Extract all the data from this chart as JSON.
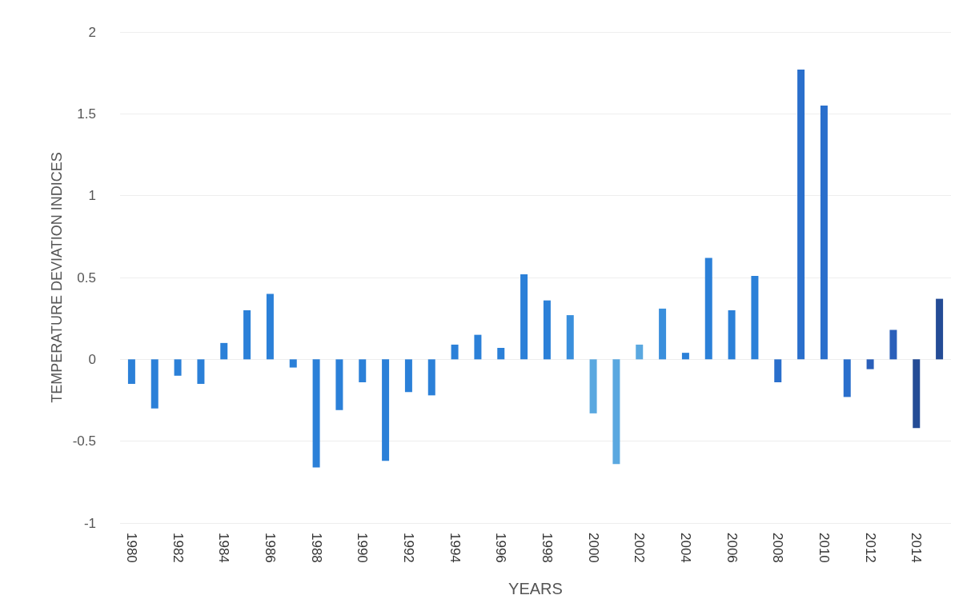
{
  "chart_data": {
    "type": "bar",
    "xlabel": "YEARS",
    "ylabel": "TEMPERATURE DEVIATION INDICES",
    "categories": [
      "1980",
      null,
      "1982",
      null,
      "1984",
      null,
      "1986",
      null,
      "1988",
      null,
      "1990",
      null,
      "1992",
      null,
      "1994",
      null,
      "1996",
      null,
      "1998",
      null,
      "2000",
      null,
      "2002",
      null,
      "2004",
      null,
      "2006",
      null,
      "2008",
      null,
      "2010",
      null,
      "2012",
      null,
      "2014",
      null
    ],
    "values": [
      -0.15,
      -0.3,
      -0.1,
      -0.15,
      0.1,
      0.3,
      0.4,
      -0.05,
      -0.66,
      -0.31,
      -0.14,
      -0.62,
      -0.2,
      -0.22,
      0.09,
      0.15,
      0.07,
      0.52,
      0.36,
      0.27,
      -0.33,
      -0.64,
      0.09,
      0.31,
      0.04,
      0.62,
      0.3,
      0.51,
      -0.14,
      1.77,
      1.55,
      -0.23,
      -0.06,
      0.18,
      -0.42,
      0.37
    ],
    "colors": [
      "#2b80d8",
      "#2b80d8",
      "#2b80d8",
      "#2b80d8",
      "#2b80d8",
      "#2b80d8",
      "#2b80d8",
      "#2b80d8",
      "#2b80d8",
      "#2b80d8",
      "#2b80d8",
      "#2b80d8",
      "#2b80d8",
      "#2b80d8",
      "#2b80d8",
      "#2b80d8",
      "#2b80d8",
      "#2b80d8",
      "#2b80d8",
      "#3a8fdc",
      "#5aa8e0",
      "#5aa8e0",
      "#5aa8e0",
      "#3a8fdc",
      "#2b80d8",
      "#2b80d8",
      "#2b80d8",
      "#2b80d8",
      "#2a6fcc",
      "#2a6fcc",
      "#2a6fcc",
      "#2a6fcc",
      "#2a5fba",
      "#2a5fba",
      "#244c96",
      "#244c96"
    ],
    "ylim": [
      -1,
      2
    ],
    "yticks": [
      -1,
      -0.5,
      0,
      0.5,
      1,
      1.5,
      2
    ],
    "grid": "y"
  }
}
